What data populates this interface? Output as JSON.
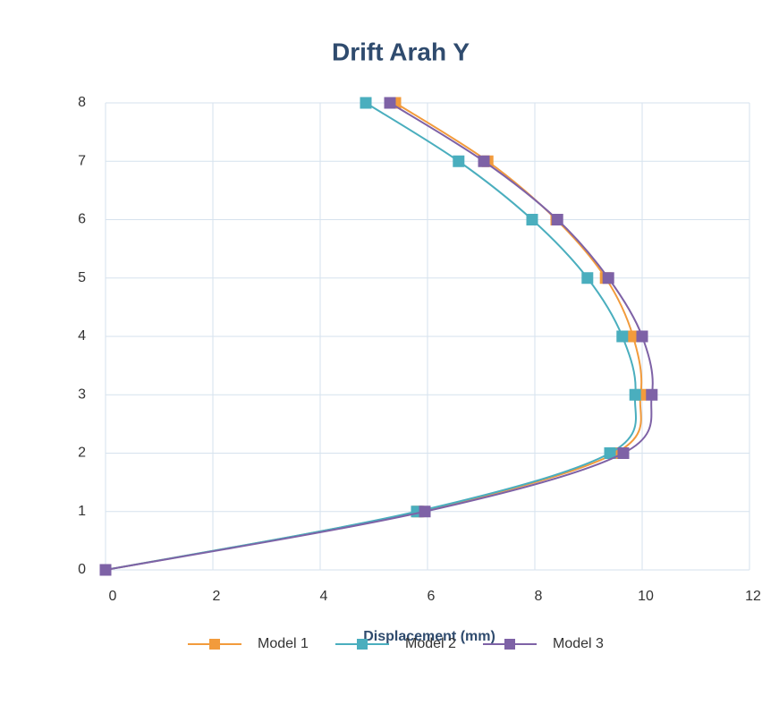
{
  "chart_data": {
    "type": "line",
    "title": "Drift Arah Y",
    "xlabel": "Displacement (mm)",
    "xlim": [
      0,
      12
    ],
    "xticks": [
      0,
      2,
      4,
      6,
      8,
      10,
      12
    ],
    "ylim": [
      0,
      8
    ],
    "yticks": [
      0,
      1,
      2,
      3,
      4,
      5,
      6,
      7,
      8
    ],
    "grid": true,
    "legend": "bottom",
    "series": [
      {
        "name": "Model 1",
        "color": "#f29b3c",
        "x": [
          0,
          5.83,
          9.5,
          9.97,
          9.83,
          9.32,
          8.4,
          7.12,
          5.4
        ],
        "values": [
          0,
          1,
          2,
          3,
          4,
          5,
          6,
          7,
          8
        ]
      },
      {
        "name": "Model 2",
        "color": "#4aaebe",
        "x": [
          0,
          5.8,
          9.4,
          9.87,
          9.63,
          8.98,
          7.95,
          6.58,
          4.85
        ],
        "values": [
          0,
          1,
          2,
          3,
          4,
          5,
          6,
          7,
          8
        ]
      },
      {
        "name": "Model 3",
        "color": "#7e62a6",
        "x": [
          0,
          5.95,
          9.65,
          10.18,
          10.0,
          9.37,
          8.42,
          7.05,
          5.3
        ],
        "values": [
          0,
          1,
          2,
          3,
          4,
          5,
          6,
          7,
          8
        ]
      }
    ]
  }
}
